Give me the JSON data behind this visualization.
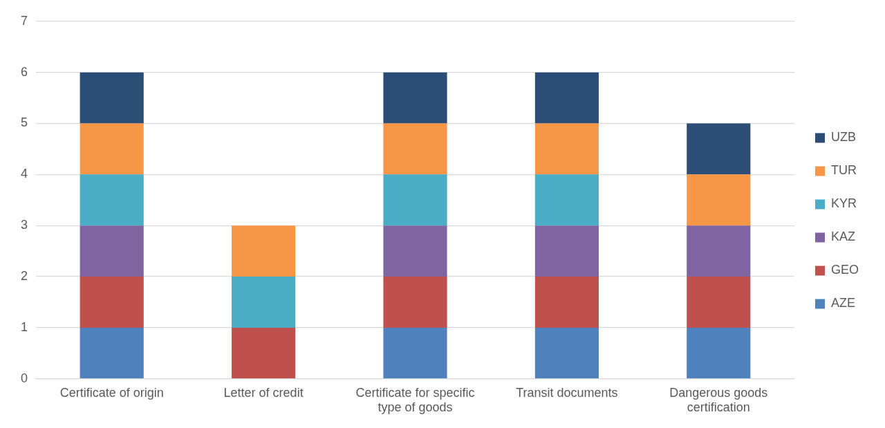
{
  "chart_data": {
    "type": "bar",
    "stacked": true,
    "categories": [
      "Certificate of origin",
      "Letter of credit",
      "Certificate for specific type of goods",
      "Transit documents",
      "Dangerous goods certification"
    ],
    "series": [
      {
        "name": "AZE",
        "color": "#4f81bd",
        "values": [
          1,
          0,
          1,
          1,
          1
        ]
      },
      {
        "name": "GEO",
        "color": "#c0504d",
        "values": [
          1,
          1,
          1,
          1,
          1
        ]
      },
      {
        "name": "KAZ",
        "color": "#8064a2",
        "values": [
          1,
          0,
          1,
          1,
          1
        ]
      },
      {
        "name": "KYR",
        "color": "#4bacc6",
        "values": [
          1,
          1,
          1,
          1,
          0
        ]
      },
      {
        "name": "TUR",
        "color": "#f79646",
        "values": [
          1,
          1,
          1,
          1,
          1
        ]
      },
      {
        "name": "UZB",
        "color": "#2c4d75",
        "values": [
          1,
          0,
          1,
          1,
          1
        ]
      }
    ],
    "ylim": [
      0,
      7
    ],
    "yticks": [
      0,
      1,
      2,
      3,
      4,
      5,
      6,
      7
    ],
    "grid": "y",
    "legend": "right"
  }
}
